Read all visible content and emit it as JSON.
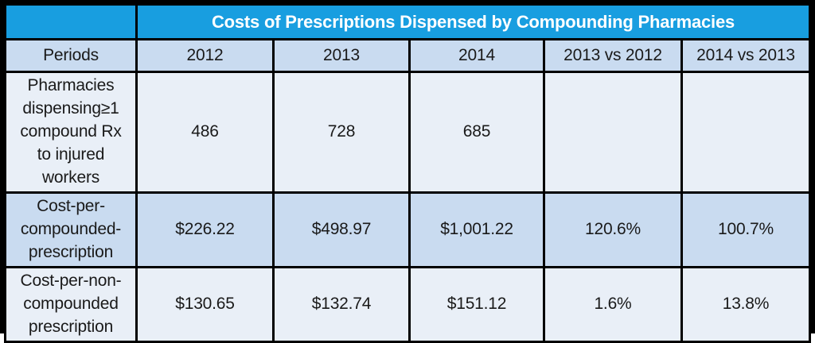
{
  "title": "Costs of Prescriptions Dispensed by Compounding Pharmacies",
  "table": {
    "header_row": [
      "Periods",
      "2012",
      "2013",
      "2014",
      "2013 vs 2012",
      "2014 vs 2013"
    ],
    "rows": [
      {
        "label": "Pharmacies\ndispensing≥1\ncompound Rx\nto injured\nworkers",
        "values": [
          "486",
          "728",
          "685",
          "",
          ""
        ]
      },
      {
        "label": "Cost-per-\ncompounded-\nprescription",
        "values": [
          "$226.22",
          "$498.97",
          "$1,001.22",
          "120.6%",
          "100.7%"
        ]
      },
      {
        "label": "Cost-per-non-\ncompounded\nprescription",
        "values": [
          "$130.65",
          "$132.74",
          "$151.12",
          "1.6%",
          "13.8%"
        ]
      }
    ]
  },
  "colors": {
    "header_blue": "#189EE0",
    "band_medium": "#C9DBF0",
    "band_light": "#E9EFF7",
    "border": "#000000",
    "title_text": "#FFFFFF",
    "body_text": "#1A1A1A"
  },
  "chart_data": {
    "type": "table",
    "title": "Costs of Prescriptions Dispensed by Compounding Pharmacies",
    "categories": [
      "2012",
      "2013",
      "2014",
      "2013 vs 2012",
      "2014 vs 2013"
    ],
    "series": [
      {
        "name": "Pharmacies dispensing ≥1 compound Rx to injured workers",
        "values": [
          486,
          728,
          685,
          null,
          null
        ]
      },
      {
        "name": "Cost-per-compounded-prescription",
        "values": [
          226.22,
          498.97,
          1001.22,
          "120.6%",
          "100.7%"
        ]
      },
      {
        "name": "Cost-per-non-compounded prescription",
        "values": [
          130.65,
          132.74,
          151.12,
          "1.6%",
          "13.8%"
        ]
      }
    ]
  }
}
